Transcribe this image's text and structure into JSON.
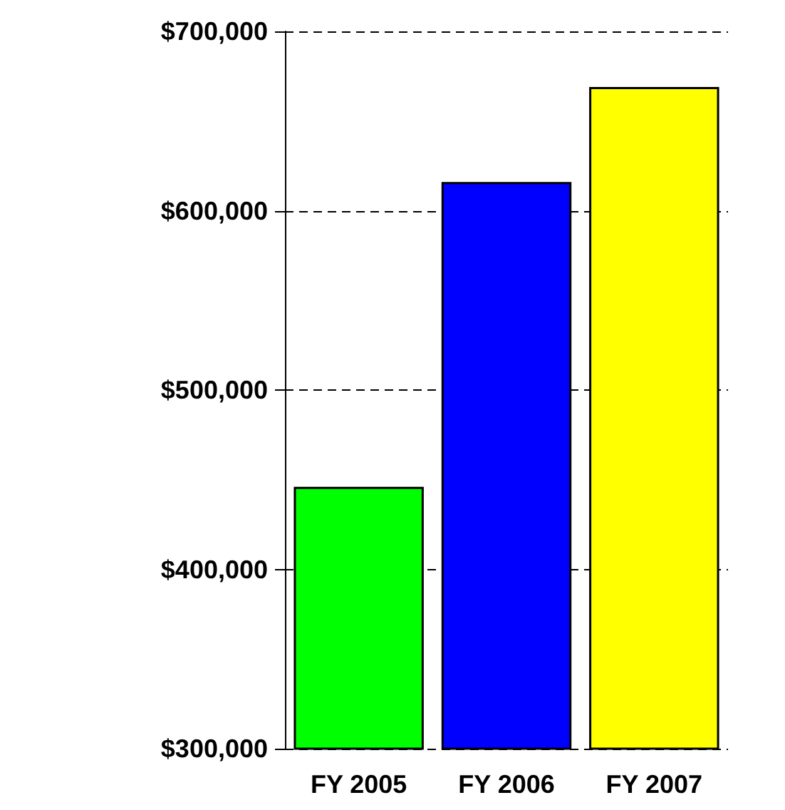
{
  "chart_data": {
    "type": "bar",
    "categories": [
      "FY 2005",
      "FY 2006",
      "FY 2007"
    ],
    "values": [
      446000,
      616000,
      669000
    ],
    "colors": [
      "#00ff00",
      "#0000ff",
      "#ffff00"
    ],
    "ylim": [
      300000,
      700000
    ],
    "yticks": [
      {
        "value": 300000,
        "label": "$300,000"
      },
      {
        "value": 400000,
        "label": "$400,000"
      },
      {
        "value": 500000,
        "label": "$500,000"
      },
      {
        "value": 600000,
        "label": "$600,000"
      },
      {
        "value": 700000,
        "label": "$700,000"
      }
    ],
    "grid": "y"
  }
}
